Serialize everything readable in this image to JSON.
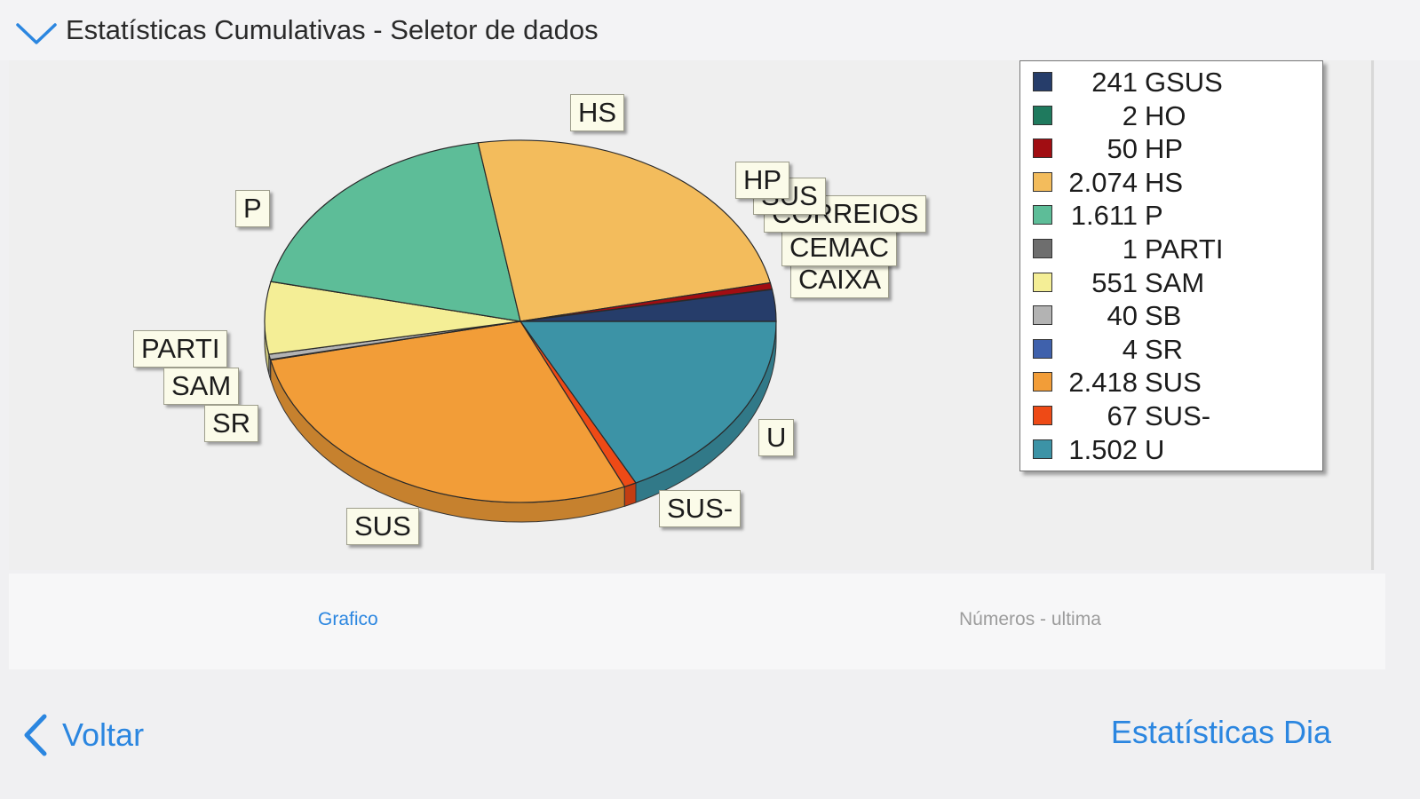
{
  "header": {
    "title": "Estatísticas Cumulativas - Seletor de dados",
    "icon": "chevron-down-icon"
  },
  "chart_data": {
    "type": "pie",
    "series": [
      {
        "name": "GSUS",
        "value": 241,
        "label": "241",
        "color": "#263d6a"
      },
      {
        "name": "HO",
        "value": 2,
        "label": "2",
        "color": "#1f7a5e"
      },
      {
        "name": "HP",
        "value": 50,
        "label": "50",
        "color": "#a10d12"
      },
      {
        "name": "HS",
        "value": 2074,
        "label": "2.074",
        "color": "#f3bc5c"
      },
      {
        "name": "P",
        "value": 1611,
        "label": "1.611",
        "color": "#5dbd98"
      },
      {
        "name": "PARTI",
        "value": 1,
        "label": "1",
        "color": "#6e6e6e"
      },
      {
        "name": "SAM",
        "value": 551,
        "label": "551",
        "color": "#f4ee96"
      },
      {
        "name": "SB",
        "value": 40,
        "label": "40",
        "color": "#b3b3b3"
      },
      {
        "name": "SR",
        "value": 4,
        "label": "4",
        "color": "#3f61ac"
      },
      {
        "name": "SUS",
        "value": 2418,
        "label": "2.418",
        "color": "#f29d38"
      },
      {
        "name": "SUS-",
        "value": 67,
        "label": "67",
        "color": "#ee4a16"
      },
      {
        "name": "U",
        "value": 1502,
        "label": "1.502",
        "color": "#3c93a6"
      }
    ],
    "callouts": [
      "HS",
      "P",
      "HP",
      "SUS",
      "CORREIOS",
      "CEMAC",
      "CAIXA",
      "PARTI",
      "SAM",
      "SR",
      "SUS",
      "SUS-",
      "U"
    ]
  },
  "tabs": [
    {
      "label": "Grafico",
      "active": true
    },
    {
      "label": "Números - ultima",
      "active": false
    }
  ],
  "footer": {
    "back_label": "Voltar",
    "next_label": "Estatísticas Dia"
  }
}
